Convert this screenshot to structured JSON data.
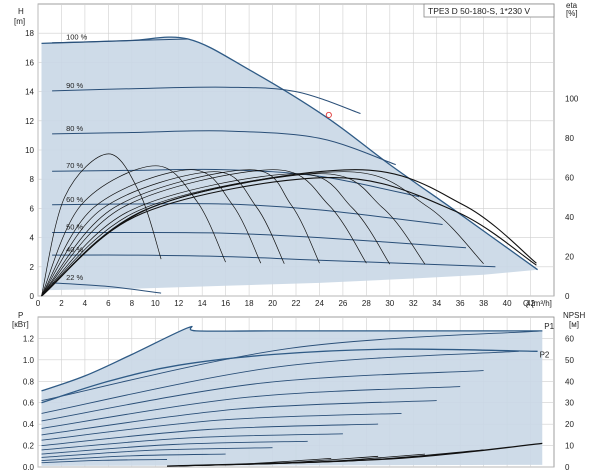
{
  "chart_data": {
    "type": "line",
    "title": "TPE3 D 50-180-S, 1*230 V",
    "top_panel": {
      "ylabel_left": "H",
      "ylabel_left_unit": "[m]",
      "ylabel_right": "eta",
      "ylabel_right_unit": "[%]",
      "xlabel": "Q [m³/h]",
      "xlim": [
        0,
        44
      ],
      "ylim_left": [
        0,
        20
      ],
      "ylim_right": [
        0,
        148
      ],
      "x_ticks": [
        "0",
        "2",
        "4",
        "6",
        "8",
        "10",
        "12",
        "14",
        "16",
        "18",
        "20",
        "22",
        "24",
        "26",
        "28",
        "30",
        "32",
        "34",
        "36",
        "38",
        "40",
        "42"
      ],
      "y_ticks_left": [
        "0",
        "2",
        "4",
        "6",
        "8",
        "10",
        "12",
        "14",
        "16",
        "18"
      ],
      "y_ticks_right": [
        "0",
        "20",
        "40",
        "60",
        "80",
        "100"
      ],
      "grid": true,
      "envelope": {
        "max_x": [
          0.3,
          4,
          8,
          12.8,
          18,
          24.5,
          30,
          36,
          42.6
        ],
        "max_y": [
          17.3,
          17.4,
          17.5,
          17.6,
          15.5,
          12.3,
          9.0,
          5.6,
          1.8
        ],
        "min_x": [
          0.3,
          8,
          16,
          24,
          32,
          38,
          42.6
        ],
        "min_y": [
          0.4,
          0.5,
          0.7,
          0.9,
          1.2,
          1.45,
          1.8
        ]
      },
      "speed_curves": [
        {
          "label": "100 %",
          "x": [
            1.2,
            4,
            8,
            12.8
          ],
          "y": [
            17.35,
            17.4,
            17.5,
            17.6
          ]
        },
        {
          "label": "90 %",
          "x": [
            1.2,
            8,
            16,
            22,
            27.5
          ],
          "y": [
            14.05,
            14.2,
            14.3,
            14.0,
            12.5
          ]
        },
        {
          "label": "80 %",
          "x": [
            1.2,
            8,
            16,
            24,
            30.5
          ],
          "y": [
            11.1,
            11.2,
            11.3,
            10.8,
            9.0
          ]
        },
        {
          "label": "70 %",
          "x": [
            1.2,
            8,
            16,
            24,
            32.5
          ],
          "y": [
            8.55,
            8.6,
            8.65,
            8.2,
            6.8
          ]
        },
        {
          "label": "60 %",
          "x": [
            1.2,
            8,
            16,
            24,
            34.5
          ],
          "y": [
            6.25,
            6.3,
            6.3,
            5.9,
            4.9
          ]
        },
        {
          "label": "50 %",
          "x": [
            1.2,
            8,
            16,
            24,
            36.5
          ],
          "y": [
            4.35,
            4.35,
            4.3,
            4.0,
            3.3
          ]
        },
        {
          "label": "40 %",
          "x": [
            1.2,
            8,
            16,
            24,
            39
          ],
          "y": [
            2.8,
            2.8,
            2.7,
            2.45,
            2.0
          ]
        },
        {
          "label": "22 %",
          "x": [
            1.2,
            6,
            10.5
          ],
          "y": [
            0.9,
            0.65,
            0.2
          ]
        }
      ],
      "operating_point": {
        "x": 24.8,
        "y": 12.4
      },
      "efficiency_curves_peak": [
        {
          "peak_x": 6,
          "peak_eta": 72,
          "end_x": 10.5
        },
        {
          "peak_x": 10,
          "peak_eta": 66,
          "end_x": 16
        },
        {
          "peak_x": 13,
          "peak_eta": 64,
          "end_x": 19
        },
        {
          "peak_x": 15,
          "peak_eta": 63,
          "end_x": 21
        },
        {
          "peak_x": 18,
          "peak_eta": 64,
          "end_x": 24
        },
        {
          "peak_x": 20,
          "peak_eta": 64,
          "end_x": 28
        },
        {
          "peak_x": 22,
          "peak_eta": 62,
          "end_x": 30
        },
        {
          "peak_x": 24,
          "peak_eta": 62,
          "end_x": 33
        },
        {
          "peak_x": 26,
          "peak_eta": 63,
          "end_x": 38
        },
        {
          "peak_x": 27,
          "peak_eta": 64,
          "end_x": 42.5
        },
        {
          "peak_x": 25,
          "peak_eta": 60,
          "end_x": 42.5
        }
      ]
    },
    "bottom_panel": {
      "ylabel_left": "P",
      "ylabel_left_unit": "[кВт]",
      "ylabel_right": "NPSH",
      "ylabel_right_unit": "[м]",
      "xlim": [
        0,
        44
      ],
      "ylim_left": [
        0,
        1.4
      ],
      "ylim_right": [
        0,
        70
      ],
      "y_ticks_left": [
        "0.0",
        "0.2",
        "0.4",
        "0.6",
        "0.8",
        "1.0",
        "1.2"
      ],
      "y_ticks_right": [
        "0",
        "10",
        "20",
        "30",
        "40",
        "50",
        "60"
      ],
      "grid": true,
      "curves": [
        {
          "name": "P1",
          "x": [
            0.3,
            4,
            8,
            12.8,
            13.5,
            20,
            30,
            43
          ],
          "y": [
            0.71,
            0.85,
            1.05,
            1.3,
            1.27,
            1.27,
            1.27,
            1.27
          ]
        },
        {
          "name": "P2",
          "x": [
            0.3,
            6,
            12,
            20,
            30,
            42.6
          ],
          "y": [
            0.6,
            0.8,
            0.95,
            1.05,
            1.1,
            1.08
          ]
        }
      ],
      "power_speed_curves_end": [
        {
          "y0": 0.62,
          "x_end": 43,
          "y_end": 1.27
        },
        {
          "y0": 0.5,
          "x_end": 41,
          "y_end": 1.08
        },
        {
          "y0": 0.43,
          "x_end": 38,
          "y_end": 0.9
        },
        {
          "y0": 0.36,
          "x_end": 36,
          "y_end": 0.75
        },
        {
          "y0": 0.3,
          "x_end": 34,
          "y_end": 0.62
        },
        {
          "y0": 0.25,
          "x_end": 31,
          "y_end": 0.5
        },
        {
          "y0": 0.2,
          "x_end": 29,
          "y_end": 0.4
        },
        {
          "y0": 0.16,
          "x_end": 26,
          "y_end": 0.31
        },
        {
          "y0": 0.12,
          "x_end": 23,
          "y_end": 0.24
        },
        {
          "y0": 0.09,
          "x_end": 20,
          "y_end": 0.18
        },
        {
          "y0": 0.06,
          "x_end": 16,
          "y_end": 0.12
        },
        {
          "y0": 0.04,
          "x_end": 11,
          "y_end": 0.07
        }
      ],
      "npsh_curves_end": [
        {
          "x_end": 43,
          "y_end": 11
        },
        {
          "x_end": 38,
          "y_end": 8
        },
        {
          "x_end": 33,
          "y_end": 6
        },
        {
          "x_end": 29,
          "y_end": 5
        },
        {
          "x_end": 25,
          "y_end": 4
        }
      ]
    }
  }
}
